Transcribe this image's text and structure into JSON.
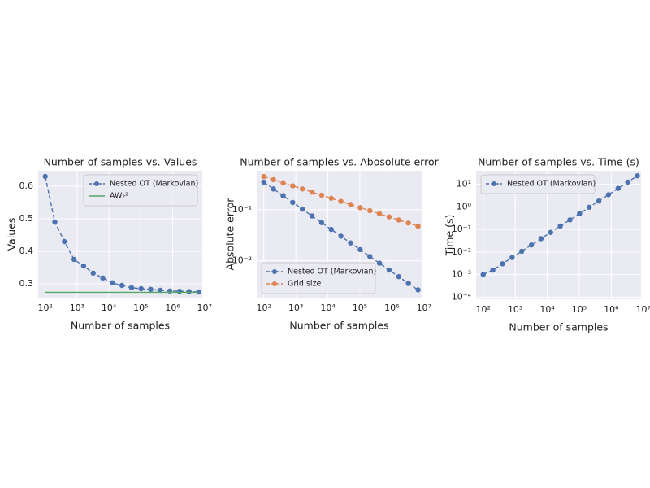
{
  "chart_data": [
    {
      "type": "line",
      "title": "Number of samples vs. Values",
      "xlabel": "Number of samples",
      "ylabel": "Values",
      "xscale": "log",
      "yscale": "linear",
      "grid": true,
      "legend": "upper right",
      "x": [
        100,
        200,
        400,
        800,
        1600,
        3200,
        6400,
        12800,
        25600,
        51200,
        102400,
        204800,
        409600,
        819200,
        1638400,
        3276800,
        6553600
      ],
      "xlim": [
        60,
        8500000
      ],
      "ylim": [
        0.2575,
        0.6475
      ],
      "xticks": [
        {
          "value": 100,
          "label": "10²"
        },
        {
          "value": 1000,
          "label": "10³"
        },
        {
          "value": 10000,
          "label": "10⁴"
        },
        {
          "value": 100000,
          "label": "10⁵"
        },
        {
          "value": 1000000,
          "label": "10⁶"
        },
        {
          "value": 10000000,
          "label": "10⁷"
        }
      ],
      "yticks": [
        0.3,
        0.4,
        0.5,
        0.6
      ],
      "series": [
        {
          "name": "Nested OT (Markovian)",
          "color": "#4c72b0",
          "linestyle": "dashed",
          "marker": true,
          "values": [
            0.63,
            0.49,
            0.43,
            0.375,
            0.355,
            0.333,
            0.318,
            0.303,
            0.295,
            0.288,
            0.285,
            0.283,
            0.28,
            0.278,
            0.277,
            0.276,
            0.275
          ]
        },
        {
          "name": "AW₂²",
          "color": "#55a868",
          "linestyle": "solid",
          "marker": false,
          "values": [
            0.274,
            0.274,
            0.274,
            0.274,
            0.274,
            0.274,
            0.274,
            0.274,
            0.274,
            0.274,
            0.274,
            0.274,
            0.274,
            0.274,
            0.274,
            0.274,
            0.274
          ]
        }
      ]
    },
    {
      "type": "line",
      "title": "Number of samples vs. Abosolute error",
      "xlabel": "Number of samples",
      "ylabel": "Absolute error",
      "xscale": "log",
      "yscale": "log",
      "grid": true,
      "legend": "lower left",
      "x": [
        100,
        200,
        400,
        800,
        1600,
        3200,
        6400,
        12800,
        25600,
        51200,
        102400,
        204800,
        409600,
        819200,
        1638400,
        3276800,
        6553600
      ],
      "xlim": [
        60,
        8500000
      ],
      "ylim": [
        0.0019,
        0.58
      ],
      "xticks": [
        {
          "value": 100,
          "label": "10²"
        },
        {
          "value": 1000,
          "label": "10³"
        },
        {
          "value": 10000,
          "label": "10⁴"
        },
        {
          "value": 100000,
          "label": "10⁵"
        },
        {
          "value": 1000000,
          "label": "10⁶"
        },
        {
          "value": 10000000,
          "label": "10⁷"
        }
      ],
      "yticks": [
        {
          "value": 0.01,
          "label": "10⁻²"
        },
        {
          "value": 0.1,
          "label": "10⁻¹"
        }
      ],
      "series": [
        {
          "name": "Nested OT (Markovian)",
          "color": "#4c72b0",
          "linestyle": "dashed",
          "marker": true,
          "values": [
            0.347,
            0.256,
            0.189,
            0.139,
            0.103,
            0.0757,
            0.0559,
            0.0412,
            0.0304,
            0.0224,
            0.0166,
            0.0122,
            0.009,
            0.0066,
            0.0049,
            0.0036,
            0.0027
          ]
        },
        {
          "name": "Grid size",
          "color": "#dd8452",
          "linestyle": "dashed",
          "marker": true,
          "values": [
            0.447,
            0.389,
            0.338,
            0.294,
            0.256,
            0.222,
            0.193,
            0.168,
            0.146,
            0.127,
            0.11,
            0.096,
            0.0835,
            0.0726,
            0.0631,
            0.0549,
            0.0477
          ]
        }
      ]
    },
    {
      "type": "line",
      "title": "Number of samples vs. Time (s)",
      "xlabel": "Number of samples",
      "ylabel": "Time (s)",
      "xscale": "log",
      "yscale": "log",
      "grid": true,
      "legend": "upper left",
      "x": [
        100,
        200,
        400,
        800,
        1600,
        3200,
        6400,
        12800,
        25600,
        51200,
        102400,
        204800,
        409600,
        819200,
        1638400,
        3276800,
        6553600
      ],
      "xlim": [
        60,
        8500000
      ],
      "ylim": [
        8e-05,
        40
      ],
      "xticks": [
        {
          "value": 100,
          "label": "10²"
        },
        {
          "value": 1000,
          "label": "10³"
        },
        {
          "value": 10000,
          "label": "10⁴"
        },
        {
          "value": 100000,
          "label": "10⁵"
        },
        {
          "value": 1000000,
          "label": "10⁶"
        },
        {
          "value": 10000000,
          "label": "10⁷"
        }
      ],
      "yticks": [
        {
          "value": 0.0001,
          "label": "10⁻⁴"
        },
        {
          "value": 0.001,
          "label": "10⁻³"
        },
        {
          "value": 0.01,
          "label": "10⁻²"
        },
        {
          "value": 0.1,
          "label": "10⁻¹"
        },
        {
          "value": 1,
          "label": "10⁰"
        },
        {
          "value": 10,
          "label": "10¹"
        }
      ],
      "series": [
        {
          "name": "Nested OT (Markovian)",
          "color": "#4c72b0",
          "linestyle": "dashed",
          "marker": true,
          "values": [
            0.001,
            0.00158,
            0.003,
            0.0057,
            0.0108,
            0.0205,
            0.039,
            0.0741,
            0.141,
            0.267,
            0.508,
            0.965,
            1.83,
            3.48,
            6.61,
            12.6,
            23.9
          ]
        }
      ]
    }
  ]
}
